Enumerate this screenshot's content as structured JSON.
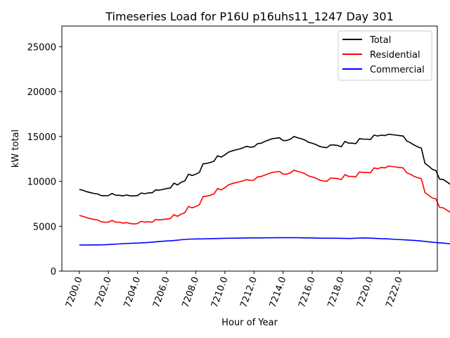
{
  "chart_data": {
    "type": "line",
    "title": "Timeseries Load for P16U p16uhs11_1247  Day 301",
    "xlabel": "Hour of Year",
    "ylabel": "kW total",
    "xlim": [
      7198.8,
      7224.6
    ],
    "ylim": [
      0,
      27300
    ],
    "grid": false,
    "legend_position": "top-right",
    "xticks": [
      7200,
      7202,
      7204,
      7206,
      7208,
      7210,
      7212,
      7214,
      7216,
      7218,
      7220,
      7222
    ],
    "xtick_labels": [
      "7200.0",
      "7202.0",
      "7204.0",
      "7206.0",
      "7208.0",
      "7210.0",
      "7212.0",
      "7214.0",
      "7216.0",
      "7218.0",
      "7220.0",
      "7222.0"
    ],
    "yticks": [
      0,
      5000,
      10000,
      15000,
      20000,
      25000
    ],
    "ytick_labels": [
      "0",
      "5000",
      "10000",
      "15000",
      "20000",
      "25000"
    ],
    "x_start": 7200.0,
    "x_step": 0.25,
    "series": [
      {
        "name": "Total",
        "color": "#000000",
        "values": [
          9100,
          9000,
          8850,
          8750,
          8650,
          8600,
          8420,
          8400,
          8420,
          8650,
          8450,
          8450,
          8380,
          8480,
          8380,
          8380,
          8420,
          8700,
          8620,
          8720,
          8720,
          9050,
          9020,
          9100,
          9200,
          9250,
          9800,
          9600,
          9900,
          10050,
          10800,
          10650,
          10800,
          11000,
          11950,
          12000,
          12100,
          12250,
          12850,
          12700,
          12950,
          13250,
          13400,
          13500,
          13600,
          13750,
          13900,
          13800,
          13850,
          14200,
          14250,
          14450,
          14600,
          14750,
          14800,
          14850,
          14550,
          14550,
          14700,
          15000,
          14850,
          14750,
          14600,
          14350,
          14250,
          14100,
          13900,
          13800,
          13750,
          14050,
          14050,
          14000,
          13850,
          14450,
          14250,
          14250,
          14200,
          14750,
          14700,
          14700,
          14650,
          15150,
          15050,
          15150,
          15100,
          15250,
          15200,
          15150,
          15100,
          15050,
          14500,
          14300,
          14050,
          13850,
          13700,
          12000
        ],
        "tail_values": [
          11700,
          11350,
          11200,
          10250,
          10200,
          9950,
          9650
        ]
      },
      {
        "name": "Residential",
        "color": "#ff0000",
        "values": [
          6200,
          6100,
          5950,
          5850,
          5750,
          5700,
          5500,
          5450,
          5450,
          5650,
          5450,
          5450,
          5350,
          5400,
          5300,
          5250,
          5300,
          5550,
          5450,
          5500,
          5450,
          5750,
          5700,
          5750,
          5800,
          5850,
          6300,
          6100,
          6350,
          6500,
          7200,
          7050,
          7200,
          7400,
          8300,
          8350,
          8450,
          8600,
          9200,
          9050,
          9300,
          9600,
          9750,
          9850,
          9950,
          10050,
          10200,
          10100,
          10150,
          10500,
          10550,
          10700,
          10850,
          11000,
          11050,
          11100,
          10800,
          10800,
          10950,
          11250,
          11100,
          11000,
          10850,
          10600,
          10500,
          10350,
          10150,
          10050,
          10000,
          10350,
          10350,
          10300,
          10200,
          10750,
          10550,
          10550,
          10500,
          11050,
          11000,
          11000,
          10950,
          11500,
          11400,
          11550,
          11500,
          11700,
          11650,
          11600,
          11550,
          11500,
          10950,
          10800,
          10550,
          10400,
          10300,
          8750
        ],
        "tail_values": [
          8450,
          8150,
          8050,
          7100,
          7050,
          6800,
          6550
        ]
      },
      {
        "name": "Commercial",
        "color": "#0000ff",
        "values": [
          2920,
          2910,
          2910,
          2910,
          2920,
          2920,
          2930,
          2940,
          2960,
          2990,
          3010,
          3030,
          3060,
          3080,
          3090,
          3110,
          3120,
          3140,
          3160,
          3190,
          3220,
          3260,
          3300,
          3330,
          3360,
          3380,
          3410,
          3450,
          3490,
          3520,
          3560,
          3570,
          3580,
          3580,
          3590,
          3600,
          3610,
          3620,
          3630,
          3640,
          3650,
          3660,
          3660,
          3670,
          3670,
          3680,
          3690,
          3700,
          3700,
          3700,
          3700,
          3710,
          3710,
          3710,
          3720,
          3720,
          3720,
          3720,
          3720,
          3720,
          3720,
          3710,
          3700,
          3700,
          3690,
          3680,
          3670,
          3660,
          3660,
          3660,
          3660,
          3660,
          3650,
          3640,
          3630,
          3640,
          3660,
          3680,
          3690,
          3680,
          3670,
          3650,
          3630,
          3610,
          3600,
          3580,
          3560,
          3530,
          3510,
          3490,
          3470,
          3450,
          3420,
          3390,
          3350,
          3310
        ],
        "tail_values": [
          3260,
          3220,
          3180,
          3150,
          3120,
          3080,
          3040
        ]
      }
    ]
  }
}
